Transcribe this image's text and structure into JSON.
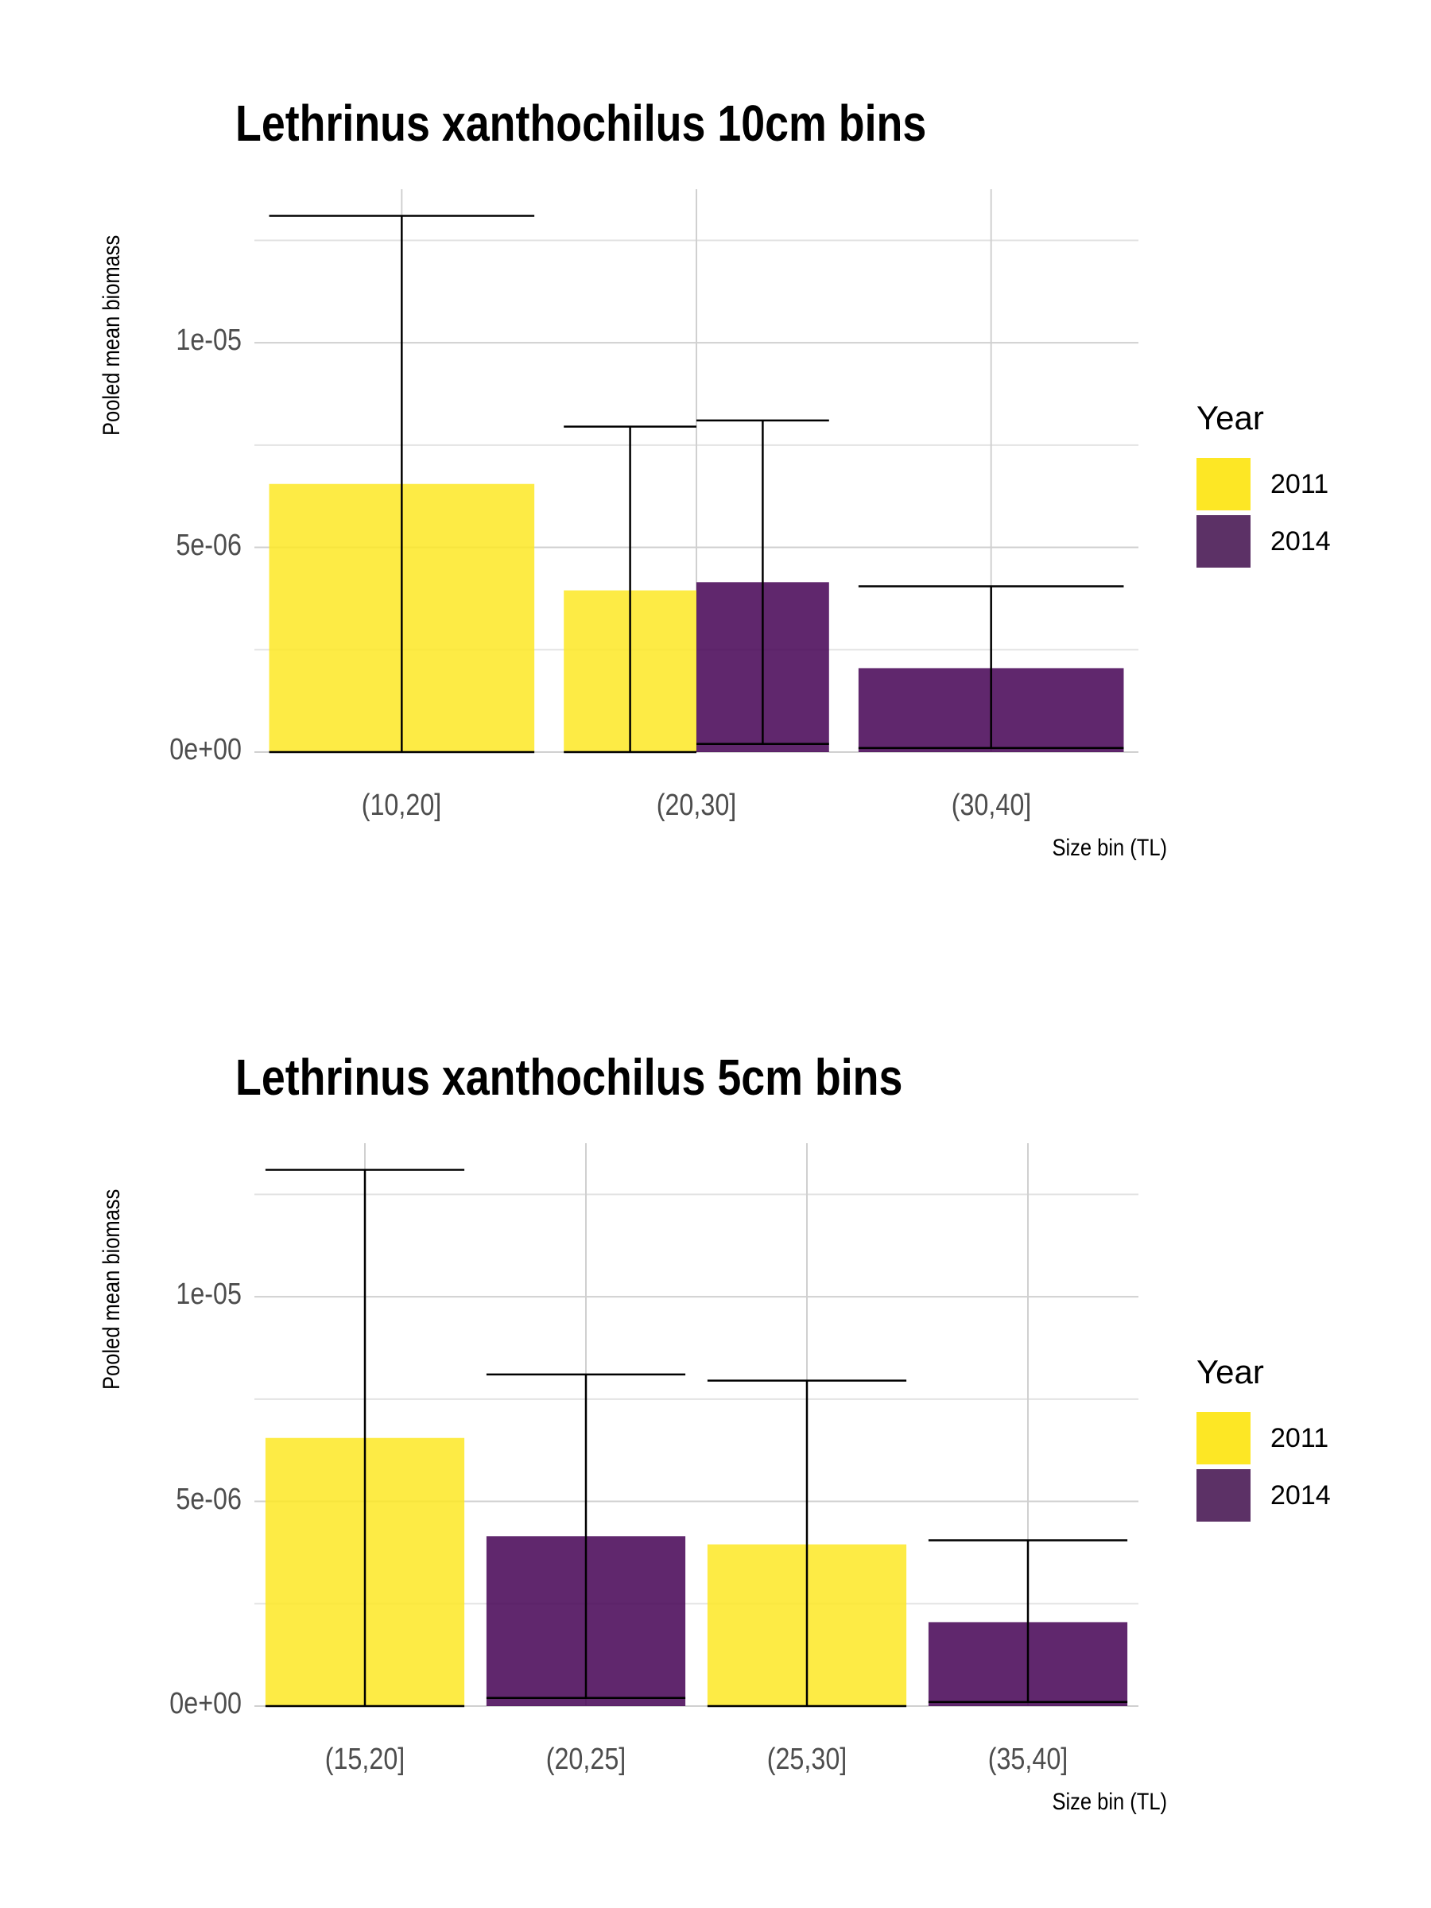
{
  "colors": {
    "2011": "#fde725",
    "2014": "#440154",
    "grid": "#d0d0d0",
    "errorbar": "#000000"
  },
  "chart_data": [
    {
      "type": "bar",
      "title": "Lethrinus xanthochilus 10cm bins",
      "xlabel": "Size bin (TL)",
      "ylabel": "Pooled mean biomass",
      "categories": [
        "(10,20]",
        "(20,30]",
        "(30,40]"
      ],
      "y_ticks": [
        "0e+00",
        "5e-06",
        "1e-05"
      ],
      "ylim": [
        0,
        1.3e-05
      ],
      "legend": {
        "title": "Year",
        "position": "right",
        "entries": [
          "2011",
          "2014"
        ]
      },
      "series": [
        {
          "name": "2011",
          "values": [
            6.55e-06,
            3.95e-06,
            null
          ],
          "err_low": [
            0.0,
            0.0,
            null
          ],
          "err_high": [
            1.31e-05,
            7.95e-06,
            null
          ]
        },
        {
          "name": "2014",
          "values": [
            null,
            4.15e-06,
            2.05e-06
          ],
          "err_low": [
            null,
            2e-07,
            1e-07
          ],
          "err_high": [
            null,
            8.1e-06,
            4.05e-06
          ]
        }
      ]
    },
    {
      "type": "bar",
      "title": "Lethrinus xanthochilus 5cm bins",
      "xlabel": "Size bin (TL)",
      "ylabel": "Pooled mean biomass",
      "categories": [
        "(15,20]",
        "(20,25]",
        "(25,30]",
        "(35,40]"
      ],
      "y_ticks": [
        "0e+00",
        "5e-06",
        "1e-05"
      ],
      "ylim": [
        0,
        1.3e-05
      ],
      "legend": {
        "title": "Year",
        "position": "right",
        "entries": [
          "2011",
          "2014"
        ]
      },
      "series": [
        {
          "name": "2011",
          "values": [
            6.55e-06,
            null,
            3.95e-06,
            null
          ],
          "err_low": [
            0.0,
            null,
            0.0,
            null
          ],
          "err_high": [
            1.31e-05,
            null,
            7.95e-06,
            null
          ]
        },
        {
          "name": "2014",
          "values": [
            null,
            4.15e-06,
            null,
            2.05e-06
          ],
          "err_low": [
            null,
            2e-07,
            null,
            1e-07
          ],
          "err_high": [
            null,
            8.1e-06,
            null,
            4.05e-06
          ]
        }
      ]
    }
  ]
}
